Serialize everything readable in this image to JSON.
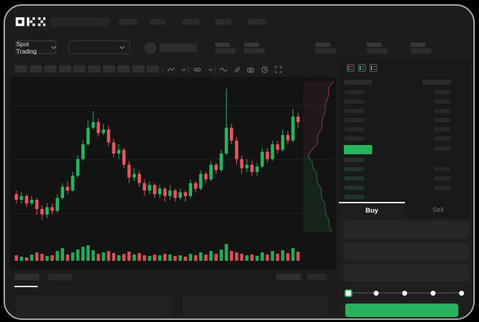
{
  "app": {
    "logo": "OKX"
  },
  "colors": {
    "green": "#2ab35f",
    "red": "#e8555e",
    "bid_row": "#20352a",
    "placeholder": "#2e2e2e",
    "accent_white": "#f2f2f2"
  },
  "header": {
    "nav_placeholder_count": 5
  },
  "pair_row": {
    "market_selector_label": "Spot Trading",
    "stat_group_count": 5
  },
  "toolbar": {
    "placeholder_count": 10,
    "icons": [
      "line-style-icon",
      "chevron-down-icon",
      "indicator-icon",
      "chevron-down-icon",
      "wave-icon",
      "compare-icon",
      "camera-icon",
      "history-icon",
      "fullscreen-icon"
    ]
  },
  "chart_data": {
    "type": "candlestick",
    "title": "",
    "value_domain": [
      15,
      100
    ],
    "series": [
      {
        "name": "price",
        "candles": [
          [
            38,
            35,
            40,
            33
          ],
          [
            35,
            37,
            39,
            33
          ],
          [
            37,
            33,
            38,
            31
          ],
          [
            33,
            35,
            37,
            32
          ],
          [
            35,
            30,
            36,
            27
          ],
          [
            30,
            27,
            32,
            24
          ],
          [
            27,
            31,
            33,
            25
          ],
          [
            31,
            29,
            33,
            27
          ],
          [
            29,
            36,
            38,
            28
          ],
          [
            36,
            42,
            44,
            35
          ],
          [
            42,
            40,
            45,
            38
          ],
          [
            40,
            48,
            50,
            39
          ],
          [
            48,
            57,
            59,
            47
          ],
          [
            57,
            65,
            67,
            56
          ],
          [
            65,
            74,
            78,
            64
          ],
          [
            74,
            77,
            83,
            73
          ],
          [
            77,
            71,
            79,
            69
          ],
          [
            71,
            73,
            76,
            70
          ],
          [
            73,
            66,
            75,
            64
          ],
          [
            66,
            60,
            68,
            58
          ],
          [
            60,
            62,
            65,
            57
          ],
          [
            62,
            54,
            63,
            52
          ],
          [
            54,
            47,
            56,
            44
          ],
          [
            47,
            49,
            52,
            45
          ],
          [
            49,
            44,
            51,
            42
          ],
          [
            44,
            40,
            46,
            37
          ],
          [
            40,
            43,
            45,
            38
          ],
          [
            43,
            38,
            44,
            36
          ],
          [
            38,
            41,
            43,
            36
          ],
          [
            41,
            37,
            42,
            34
          ],
          [
            37,
            40,
            43,
            35
          ],
          [
            40,
            36,
            41,
            34
          ],
          [
            36,
            39,
            41,
            35
          ],
          [
            39,
            37,
            40,
            34
          ],
          [
            37,
            44,
            46,
            36
          ],
          [
            44,
            41,
            45,
            39
          ],
          [
            41,
            49,
            51,
            40
          ],
          [
            49,
            46,
            50,
            44
          ],
          [
            46,
            54,
            56,
            45
          ],
          [
            54,
            51,
            55,
            49
          ],
          [
            51,
            60,
            62,
            50
          ],
          [
            60,
            74,
            95,
            59
          ],
          [
            74,
            67,
            76,
            65
          ],
          [
            67,
            57,
            69,
            54
          ],
          [
            57,
            52,
            59,
            49
          ],
          [
            52,
            54,
            57,
            50
          ],
          [
            54,
            50,
            56,
            48
          ],
          [
            50,
            53,
            55,
            48
          ],
          [
            53,
            61,
            63,
            52
          ],
          [
            61,
            57,
            63,
            55
          ],
          [
            57,
            65,
            67,
            56
          ],
          [
            65,
            62,
            67,
            60
          ],
          [
            62,
            70,
            73,
            61
          ],
          [
            70,
            67,
            72,
            65
          ],
          [
            67,
            80,
            84,
            66
          ],
          [
            80,
            77,
            82,
            74
          ]
        ]
      },
      {
        "name": "volume",
        "values": [
          8,
          6,
          5,
          9,
          12,
          10,
          7,
          8,
          14,
          18,
          9,
          12,
          16,
          20,
          22,
          15,
          10,
          12,
          14,
          11,
          8,
          10,
          13,
          9,
          11,
          8,
          7,
          9,
          8,
          10,
          9,
          7,
          8,
          6,
          10,
          8,
          12,
          9,
          14,
          10,
          16,
          24,
          14,
          12,
          10,
          8,
          9,
          7,
          12,
          9,
          14,
          10,
          15,
          11,
          18,
          13
        ]
      }
    ],
    "depth": {
      "asks_steps": [
        [
          0.95,
          0.02
        ],
        [
          0.8,
          0.06
        ],
        [
          0.78,
          0.12
        ],
        [
          0.7,
          0.16
        ],
        [
          0.68,
          0.22
        ],
        [
          0.6,
          0.26
        ],
        [
          0.58,
          0.32
        ],
        [
          0.46,
          0.36
        ],
        [
          0.44,
          0.42
        ],
        [
          0.3,
          0.45
        ],
        [
          0.22,
          0.47
        ],
        [
          0.15,
          0.5
        ]
      ],
      "bids_steps": [
        [
          0.15,
          0.5
        ],
        [
          0.28,
          0.53
        ],
        [
          0.3,
          0.57
        ],
        [
          0.42,
          0.6
        ],
        [
          0.44,
          0.66
        ],
        [
          0.55,
          0.7
        ],
        [
          0.58,
          0.76
        ],
        [
          0.68,
          0.8
        ],
        [
          0.7,
          0.86
        ],
        [
          0.8,
          0.9
        ],
        [
          0.82,
          0.95
        ],
        [
          0.9,
          0.98
        ]
      ]
    },
    "grid": "faint horizontal lines, no visible axis labels"
  },
  "orderbook": {
    "view_icons": [
      "orderbook-combined-icon",
      "orderbook-bids-icon",
      "orderbook-asks-icon"
    ],
    "ask_row_count": 6,
    "bid_row_count": 5,
    "right_lower_row_count": 4,
    "last_price_highlight": "green bar (value not legible)"
  },
  "trade_panel": {
    "buy_tab_label": "Buy",
    "sell_tab_label": "Sell",
    "active_tab": "Buy",
    "input_row_count": 3,
    "slider_stop_count": 5,
    "slider_value_index": 0
  },
  "bottom_bar": {
    "left_tab_count": 2,
    "right_item_count": 2,
    "panel_count": 2
  }
}
